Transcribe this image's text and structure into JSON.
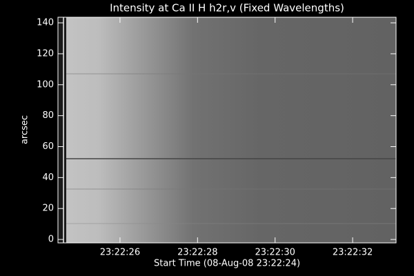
{
  "chart_data": {
    "type": "image",
    "title": "Intensity at Ca II H h2r,v (Fixed Wavelengths)",
    "x_label": "Start Time (08-Aug-08 23:22:24)",
    "y_label": "arcsec",
    "xlim": [
      0.4,
      9.12
    ],
    "xticks": [
      {
        "value": 2,
        "label": "23:22:26"
      },
      {
        "value": 4,
        "label": "23:22:28"
      },
      {
        "value": 6,
        "label": "23:22:30"
      },
      {
        "value": 8,
        "label": "23:22:32"
      }
    ],
    "ylim": [
      -2.2,
      143.6
    ],
    "yticks": [
      0,
      20,
      40,
      60,
      80,
      100,
      120,
      140
    ]
  }
}
